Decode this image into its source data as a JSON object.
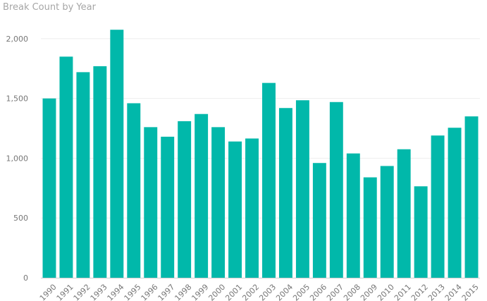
{
  "chart_data": {
    "type": "bar",
    "title": "Break Count by Year",
    "xlabel": "",
    "ylabel": "",
    "categories": [
      "1990",
      "1991",
      "1992",
      "1993",
      "1994",
      "1995",
      "1996",
      "1997",
      "1998",
      "1999",
      "2000",
      "2001",
      "2002",
      "2003",
      "2004",
      "2005",
      "2006",
      "2007",
      "2008",
      "2009",
      "2010",
      "2011",
      "2012",
      "2013",
      "2014",
      "2015"
    ],
    "values": [
      1500,
      1850,
      1720,
      1770,
      2075,
      1460,
      1260,
      1180,
      1310,
      1370,
      1260,
      1140,
      1165,
      1630,
      1420,
      1485,
      960,
      1470,
      1040,
      840,
      935,
      1075,
      765,
      1190,
      1255,
      1350
    ],
    "ylim": [
      0,
      2200
    ],
    "yticks": [
      0,
      500,
      1000,
      1500,
      2000
    ],
    "ytick_labels": [
      "0",
      "500",
      "1,000",
      "1,500",
      "2,000"
    ],
    "grid": true,
    "bar_color": "#01b8aa",
    "grid_color": "#eeeeee",
    "axis_color": "#cfcfcf"
  }
}
